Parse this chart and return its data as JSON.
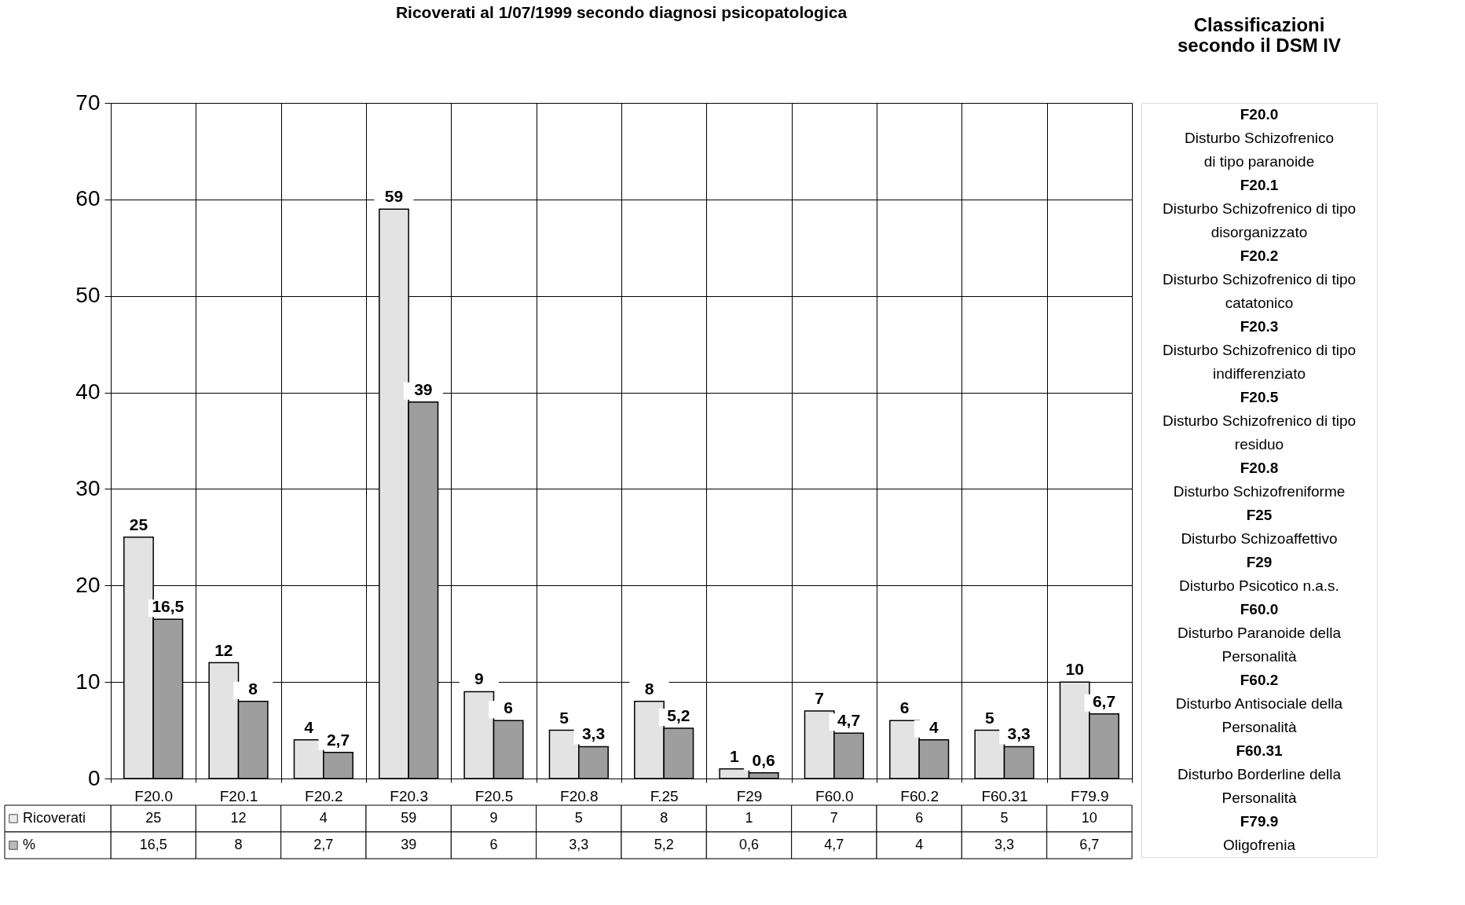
{
  "chart_data": [
    {
      "type": "bar",
      "title": "Ricoverati al 1/07/1999 secondo diagnosi psicopatologica",
      "categories": [
        "F20.0",
        "F20.1",
        "F20.2",
        "F20.3",
        "F20.5",
        "F20.8",
        "F.25",
        "F29",
        "F60.0",
        "F60.2",
        "F60.31",
        "F79.9"
      ],
      "series": [
        {
          "name": "Ricoverati",
          "color": "#e3e3e3",
          "values": [
            25,
            12,
            4,
            59,
            9,
            5,
            8,
            1,
            7,
            6,
            5,
            10
          ],
          "value_labels": [
            "25",
            "12",
            "4",
            "59",
            "9",
            "5",
            "8",
            "1",
            "7",
            "6",
            "5",
            "10"
          ]
        },
        {
          "name": "%",
          "color": "#9e9e9e",
          "values": [
            16.5,
            8,
            2.7,
            39,
            6,
            3.3,
            5.2,
            0.6,
            4.7,
            4,
            3.3,
            6.7
          ],
          "value_labels": [
            "16,5",
            "8",
            "2,7",
            "39",
            "6",
            "3,3",
            "5,2",
            "0,6",
            "4,7",
            "4",
            "3,3",
            "6,7"
          ]
        }
      ],
      "ylim": [
        0,
        70
      ],
      "yticks": [
        0,
        10,
        20,
        30,
        40,
        50,
        60,
        70
      ],
      "grid": true,
      "legend": "bottom left"
    },
    {
      "type": "other",
      "title": "Classificazioni\nsecondo il DSM IV",
      "annotations": [
        "F20.0\nDisturbo Schizofrenico\ndi tipo paranoide",
        "F20.1\nDisturbo Schizofrenico di tipo\ndisorganizzato",
        "F20.2\nDisturbo Schizofrenico di tipo\ncatatonico",
        "F20.3\nDisturbo Schizofrenico di tipo\nindifferenziato",
        "F20.5\nDisturbo Schizofrenico di tipo\nresiduo",
        "F20.8\nDisturbo Schizofreniforme",
        "F25\nDisturbo Schizoaffettivo",
        "F29\nDisturbo Psicotico n.a.s.",
        "F60.0\nDisturbo Paranoide della\nPersonalità",
        "F60.2\nDisturbo Antisociale della\nPersonalità",
        "F60.31\nDisturbo Borderline della\nPersonalità",
        "F79.9\nOligofrenia"
      ]
    }
  ]
}
